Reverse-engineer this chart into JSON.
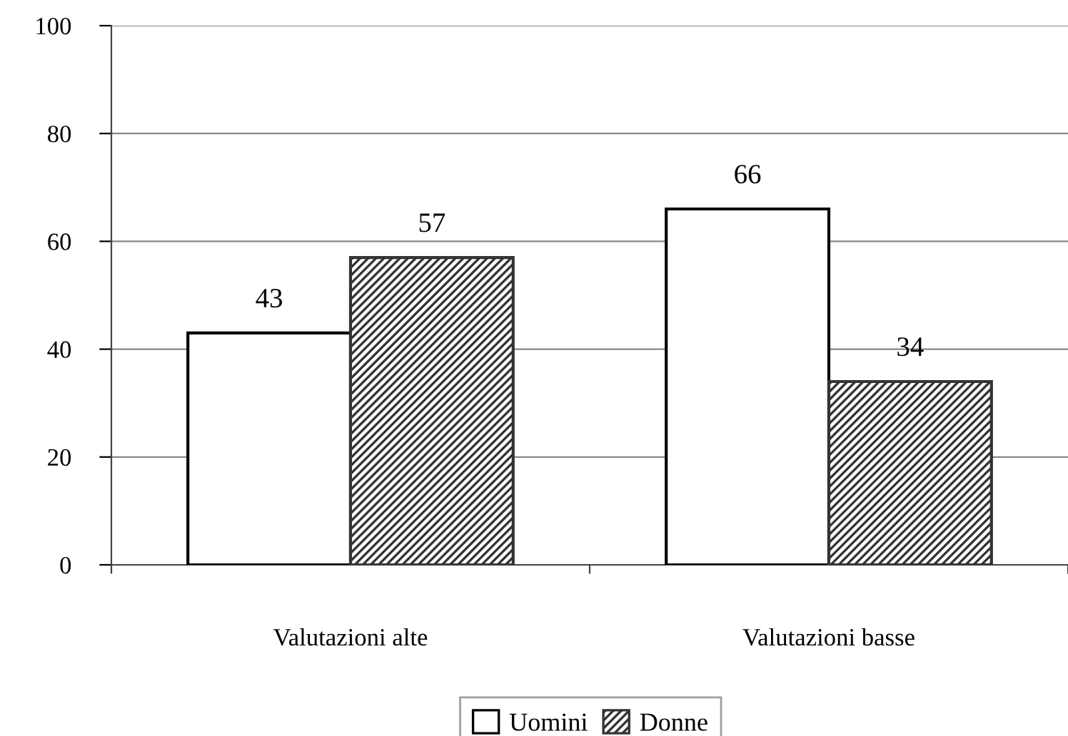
{
  "chart_data": {
    "type": "bar",
    "categories": [
      "Valutazioni alte",
      "Valutazioni basse"
    ],
    "series": [
      {
        "name": "Uomini",
        "color": "#ffffff",
        "values": [
          43,
          66
        ]
      },
      {
        "name": "Donne",
        "color": "#333333",
        "values": [
          57,
          34
        ]
      }
    ],
    "ylim": [
      0,
      100
    ],
    "yticks": [
      0,
      20,
      40,
      60,
      80,
      100
    ],
    "grid": "y",
    "legend": "bottom",
    "data_labels": true
  }
}
